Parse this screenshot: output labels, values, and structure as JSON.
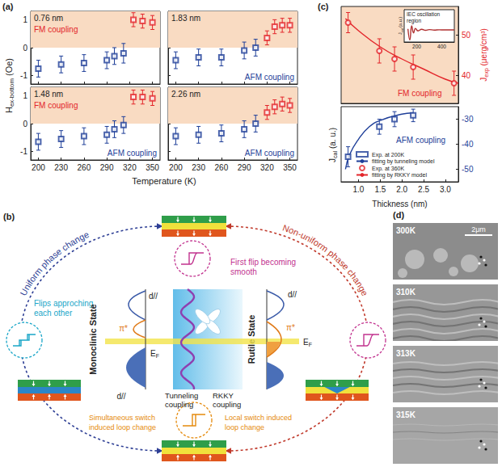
{
  "panel_labels": [
    "(a)",
    "(b)",
    "(c)",
    "(d)"
  ],
  "chart_data": [
    {
      "type": "scatter",
      "title": "0.76 nm",
      "fm_label": "FM coupling",
      "tick_labels": "y",
      "y_label": {
        "main": "H",
        "sub": "ex-bottom",
        "unit": " (Oe)"
      },
      "xlim": [
        190,
        360
      ],
      "xticks": [
        200,
        230,
        260,
        290,
        320,
        350
      ],
      "ylim": [
        -1.3,
        1.3
      ],
      "yticks": [
        -1,
        0,
        1
      ],
      "fm_region": [
        0,
        1.3
      ],
      "series": [
        {
          "color": "#1f3f99",
          "marker": "open_square",
          "x": [
            200,
            230,
            260,
            290,
            300,
            312
          ],
          "values": [
            -0.75,
            -0.6,
            -0.55,
            -0.45,
            -0.3,
            -0.2
          ],
          "errors": [
            0.3,
            0.3,
            0.3,
            0.3,
            0.3,
            0.35
          ]
        },
        {
          "color": "#e3262b",
          "marker": "open_square",
          "x": [
            325,
            337,
            350
          ],
          "values": [
            1.0,
            0.95,
            0.9
          ],
          "errors": [
            0.25,
            0.25,
            0.25
          ]
        }
      ]
    },
    {
      "type": "scatter",
      "title": "1.83 nm",
      "afm_label": "AFM coupling",
      "tick_labels": false,
      "xlim": [
        190,
        360
      ],
      "xticks": [
        200,
        230,
        260,
        290,
        320,
        350
      ],
      "ylim": [
        -1.3,
        1.3
      ],
      "yticks": [
        -1,
        0,
        1
      ],
      "fm_region": [
        0,
        1.3
      ],
      "series": [
        {
          "color": "#1f3f99",
          "marker": "open_square",
          "x": [
            200,
            230,
            260,
            290,
            305
          ],
          "values": [
            -0.45,
            -0.35,
            -0.35,
            -0.1,
            0
          ],
          "errors": [
            0.3,
            0.3,
            0.3,
            0.3,
            0.3
          ]
        },
        {
          "color": "#e3262b",
          "marker": "open_square",
          "x": [
            320,
            330,
            340,
            350
          ],
          "values": [
            0.35,
            0.75,
            0.8,
            0.8
          ],
          "errors": [
            0.25,
            0.25,
            0.25,
            0.25
          ]
        }
      ]
    },
    {
      "type": "scatter",
      "title": "1.48 nm",
      "fm_label": "FM coupling",
      "afm_label": "AFM coupling",
      "x_label": "Temperature (K)",
      "xlim": [
        190,
        360
      ],
      "xticks": [
        200,
        230,
        260,
        290,
        320,
        350
      ],
      "ylim": [
        -1.3,
        1.3
      ],
      "yticks": [
        -1,
        0,
        1
      ],
      "fm_region": [
        0,
        1.3
      ],
      "series": [
        {
          "color": "#1f3f99",
          "marker": "open_square",
          "x": [
            200,
            230,
            260,
            290,
            300,
            312
          ],
          "values": [
            -0.65,
            -0.55,
            -0.45,
            -0.4,
            -0.2,
            -0.05
          ],
          "errors": [
            0.3,
            0.3,
            0.3,
            0.3,
            0.3,
            0.3
          ]
        },
        {
          "color": "#e3262b",
          "marker": "open_square",
          "x": [
            325,
            337,
            350
          ],
          "values": [
            0.95,
            0.95,
            0.9
          ],
          "errors": [
            0.25,
            0.25,
            0.25
          ]
        }
      ]
    },
    {
      "type": "scatter",
      "title": "2.26 nm",
      "afm_label": "AFM coupling",
      "tick_labels": "x",
      "xlim": [
        190,
        360
      ],
      "xticks": [
        200,
        230,
        260,
        290,
        320,
        350
      ],
      "ylim": [
        -1.3,
        1.3
      ],
      "yticks": [
        -1,
        0,
        1
      ],
      "fm_region": [
        0,
        1.3
      ],
      "series": [
        {
          "color": "#1f3f99",
          "marker": "open_square",
          "x": [
            200,
            230,
            260,
            290,
            305
          ],
          "values": [
            -0.45,
            -0.4,
            -0.35,
            -0.2,
            0
          ],
          "errors": [
            0.3,
            0.3,
            0.3,
            0.3,
            0.3
          ]
        },
        {
          "color": "#e3262b",
          "marker": "open_square",
          "x": [
            320,
            330,
            340,
            350
          ],
          "values": [
            0.4,
            0.6,
            0.7,
            0.65
          ],
          "errors": [
            0.25,
            0.25,
            0.25,
            0.25
          ]
        }
      ]
    },
    {
      "type": "scatter",
      "x_label": "Thickness (nm)",
      "y_label": {
        "main": "J",
        "sub": "cal",
        "unit": " (a. u.)"
      },
      "afm_label": "AFM coupling",
      "legend": "bottom",
      "xlim": [
        0.6,
        3.3
      ],
      "xticks": [
        {
          "value": 1,
          "label": "1.0"
        },
        1.5,
        {
          "value": 2,
          "label": "2.0"
        },
        2.5,
        {
          "value": 3,
          "label": "3.0"
        }
      ],
      "y2lim": [
        -55,
        -25
      ],
      "y2ticks": [
        -30,
        -40,
        -50
      ],
      "series": [
        {
          "name": "Exp. at 200K",
          "type": "scatter",
          "marker": "open_square",
          "color": "#1f3f99",
          "axis": "y2",
          "x": [
            0.76,
            1.48,
            1.83,
            2.26
          ],
          "values": [
            -45,
            -33,
            -30,
            -28.5
          ],
          "errors": [
            4,
            3,
            3,
            2.5
          ]
        },
        {
          "name": "fitting by tunneling model",
          "type": "line",
          "line_style": "solid",
          "color": "#1f3f99",
          "axis": "y2",
          "x": [
            0.7,
            0.8,
            1,
            1.25,
            1.5,
            2,
            2.26
          ],
          "values": [
            -50,
            -44,
            -38,
            -33,
            -30.5,
            -28,
            -27.5
          ]
        }
      ]
    },
    {
      "type": "scatter",
      "fm_label": "FM coupling",
      "y2_label": {
        "main": "J",
        "sub": "exp",
        "unit": " (μerg/cm³)"
      },
      "xlim": [
        0.6,
        3.3
      ],
      "y2lim": [
        33,
        57
      ],
      "y2ticks": [
        40,
        50
      ],
      "series": [
        {
          "name": "Exp. at 360K",
          "type": "scatter",
          "marker": "open_circle",
          "color": "#e3262b",
          "axis": "y2",
          "x": [
            0.76,
            1.48,
            1.83,
            2.26,
            3.2
          ],
          "values": [
            53,
            46,
            44,
            42,
            38
          ],
          "errors": [
            2.5,
            3,
            3,
            3,
            3
          ]
        },
        {
          "name": "fitting by RKKY model",
          "type": "line",
          "line_style": "solid",
          "color": "#e3262b",
          "axis": "y2",
          "x": [
            0.7,
            1,
            1.5,
            2,
            2.5,
            3,
            3.3
          ],
          "values": [
            54,
            51,
            47,
            44,
            41.5,
            39,
            38
          ]
        }
      ]
    },
    {
      "type": "line",
      "title": "IEC oscillation region",
      "y_label": {
        "main": "J",
        "sub": "cal",
        "unit": " (a.u.)"
      },
      "tick_labels": "x",
      "xlim": [
        100,
        500
      ],
      "xticks": [
        200,
        400
      ],
      "ylim": [
        -1.2,
        2
      ],
      "series": [
        {
          "color": "#b03030",
          "x": [
            130,
            145,
            160,
            175,
            190,
            210,
            240,
            270,
            300,
            340,
            380,
            420,
            460,
            500
          ],
          "values": [
            0.1,
            -1.0,
            0.4,
            -0.3,
            0.15,
            -0.1,
            0.06,
            -0.04,
            0.03,
            -0.02,
            0.01,
            0,
            0,
            0
          ]
        }
      ]
    }
  ],
  "diagram": {
    "uniform": "Uniform phase change",
    "non_uniform": "Non-uniform phase change",
    "flips": "Flips approching each other",
    "first_flip": "First flip becoming smooth",
    "simultaneous": "Simultaneous switch induced loop change",
    "local": "Local switch induced loop change",
    "monoclinic": "Monoclinic State",
    "rutile": "Rutile State",
    "tunneling": "Tunneling coupling",
    "rkky": "RKKY coupling",
    "d_parallel": "d//",
    "pi_star": "π*",
    "fermi": {
      "main": "E",
      "sub": "F"
    }
  },
  "images": {
    "labels": [
      "300K",
      "310K",
      "313K",
      "315K"
    ],
    "scale_bar": "2μm"
  }
}
